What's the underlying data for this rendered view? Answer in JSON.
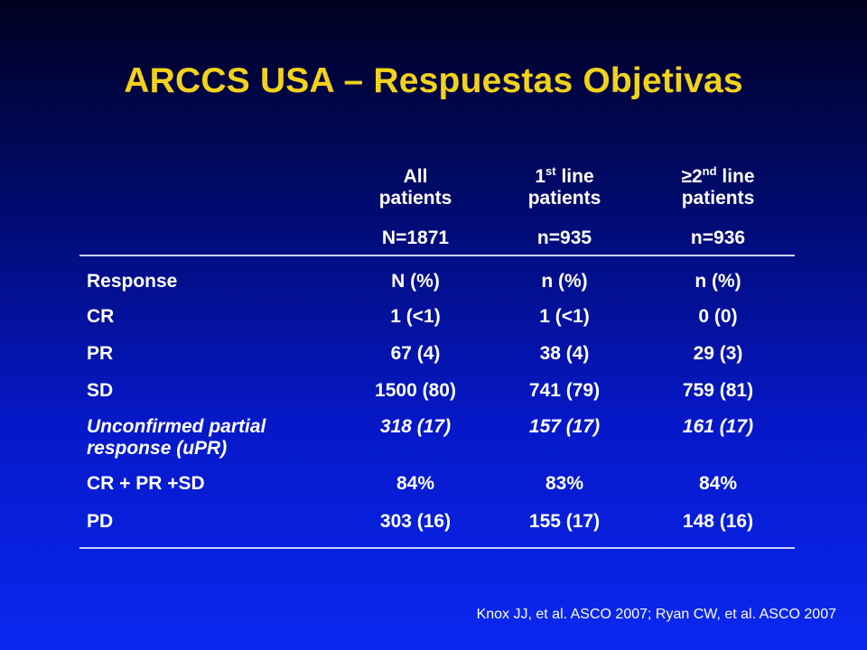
{
  "title": "ARCCS USA – Respuestas Objetivas",
  "table": {
    "columns": [
      {
        "line1": "All",
        "line2": "patients",
        "n": "N=1871"
      },
      {
        "line1_main": "1",
        "line1_sup": "st",
        "line1_rest": " line",
        "line2": "patients",
        "n": "n=935"
      },
      {
        "line1_main": "≥2",
        "line1_sup": "nd",
        "line1_rest": " line",
        "line2": "patients",
        "n": "n=936"
      }
    ],
    "rows": [
      {
        "label": "Response",
        "values": [
          "N (%)",
          "n (%)",
          "n (%)"
        ]
      },
      {
        "label": "CR",
        "values": [
          "1 (<1)",
          "1 (<1)",
          "0 (0)"
        ]
      },
      {
        "label": "PR",
        "values": [
          "67 (4)",
          "38 (4)",
          "29 (3)"
        ]
      },
      {
        "label": "SD",
        "values": [
          "1500 (80)",
          "741 (79)",
          "759 (81)"
        ]
      },
      {
        "label_line1": "Unconfirmed partial",
        "label_line2": "response (uPR)",
        "values": [
          "318 (17)",
          "157 (17)",
          "161 (17)"
        ]
      },
      {
        "label": "CR + PR +SD",
        "values": [
          "84%",
          "83%",
          "84%"
        ]
      },
      {
        "label": "PD",
        "values": [
          "303 (16)",
          "155 (17)",
          "148 (16)"
        ]
      }
    ]
  },
  "footer": "Knox JJ, et al. ASCO 2007; Ryan CW, et al. ASCO 2007",
  "colors": {
    "title": "#f2d21a",
    "text": "#ffffff",
    "rule": "#c8d0ff"
  }
}
